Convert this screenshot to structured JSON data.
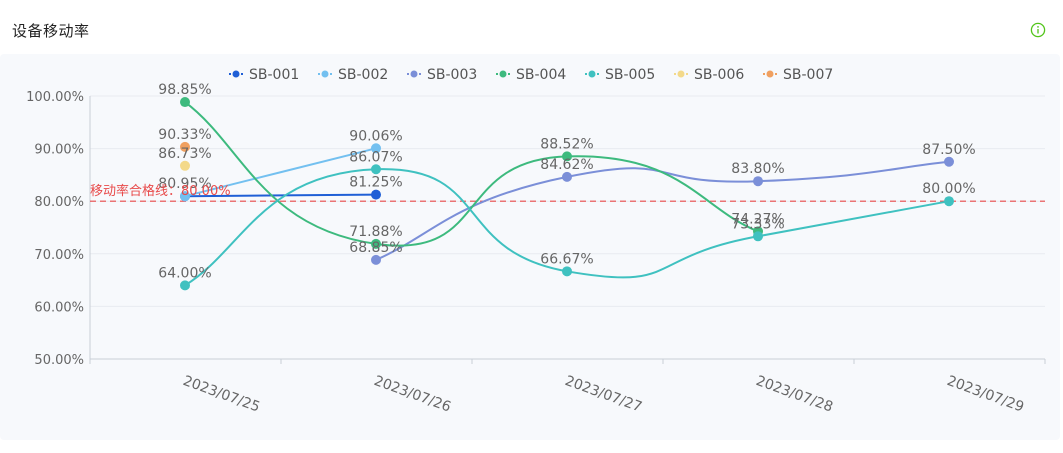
{
  "header": {
    "title": "设备移动率",
    "info_icon": "info-circle-icon",
    "info_color": "#52c41a"
  },
  "chart_data": {
    "type": "line",
    "categories": [
      "2023/07/25",
      "2023/07/26",
      "2023/07/27",
      "2023/07/28",
      "2023/07/29"
    ],
    "ylim": [
      50,
      100
    ],
    "yticks": [
      "50.00%",
      "60.00%",
      "70.00%",
      "80.00%",
      "90.00%",
      "100.00%"
    ],
    "yticks_values": [
      50,
      60,
      70,
      80,
      90,
      100
    ],
    "legend_position": "top-center",
    "threshold": {
      "value": 80,
      "label": "移动率合格线：80.00%",
      "color": "#e84a4a"
    },
    "series": [
      {
        "name": "SB-001",
        "color": "#1f5fd6",
        "values": [
          80.95,
          81.25,
          null,
          null,
          null
        ],
        "labels": [
          "80.95%",
          "81.25%",
          "",
          "",
          ""
        ]
      },
      {
        "name": "SB-002",
        "color": "#73c0f0",
        "values": [
          80.95,
          90.06,
          null,
          null,
          null
        ],
        "labels": [
          "",
          "90.06%",
          "",
          "",
          ""
        ]
      },
      {
        "name": "SB-003",
        "color": "#7b8fd8",
        "values": [
          null,
          68.85,
          84.62,
          83.8,
          87.5
        ],
        "labels": [
          "",
          "68.85%",
          "84.62%",
          "83.80%",
          "87.50%"
        ]
      },
      {
        "name": "SB-004",
        "color": "#3dba7e",
        "values": [
          98.85,
          71.88,
          88.52,
          74.27,
          null
        ],
        "labels": [
          "98.85%",
          "71.88%",
          "88.52%",
          "74.27%",
          ""
        ]
      },
      {
        "name": "SB-005",
        "color": "#3fc1c0",
        "values": [
          64.0,
          86.07,
          66.67,
          73.33,
          80.0
        ],
        "labels": [
          "64.00%",
          "86.07%",
          "66.67%",
          "73.33%",
          "80.00%"
        ]
      },
      {
        "name": "SB-006",
        "color": "#f3d98a",
        "values": [
          86.73,
          null,
          null,
          null,
          null
        ],
        "labels": [
          "86.73%",
          "",
          "",
          "",
          ""
        ]
      },
      {
        "name": "SB-007",
        "color": "#f0a060",
        "values": [
          90.33,
          null,
          null,
          null,
          null
        ],
        "labels": [
          "90.33%",
          "",
          "",
          "",
          ""
        ]
      }
    ]
  }
}
